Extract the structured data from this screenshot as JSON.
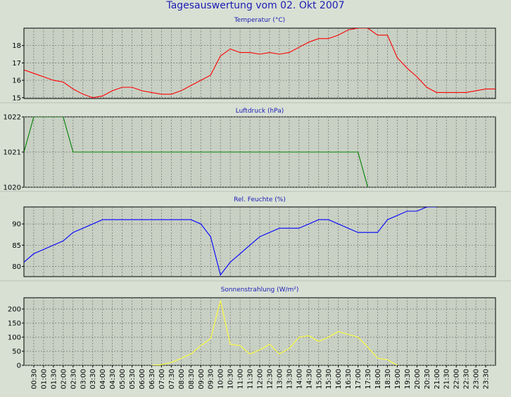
{
  "title": "Tagesauswertung vom 02. Okt 2007",
  "time_labels": [
    "00:30",
    "01:00",
    "01:30",
    "02:00",
    "02:30",
    "03:00",
    "03:30",
    "04:00",
    "04:30",
    "05:00",
    "05:30",
    "06:00",
    "06:30",
    "07:00",
    "07:30",
    "08:00",
    "08:30",
    "09:00",
    "09:30",
    "10:00",
    "10:30",
    "11:00",
    "11:30",
    "12:00",
    "12:30",
    "13:00",
    "13:30",
    "14:00",
    "14:30",
    "15:00",
    "15:30",
    "16:00",
    "16:30",
    "17:00",
    "17:30",
    "18:00",
    "18:30",
    "19:00",
    "19:30",
    "20:00",
    "20:30",
    "21:00",
    "21:30",
    "22:00",
    "22:30",
    "23:00",
    "23:30"
  ],
  "chart_data": [
    {
      "type": "line",
      "title": "Temperatur (°C)",
      "color": "#ff0000",
      "ylim": [
        14.95,
        19.0
      ],
      "yticks": [
        15,
        16,
        17,
        18
      ],
      "x": [
        "00:00",
        "00:30",
        "01:00",
        "01:30",
        "02:00",
        "02:30",
        "03:00",
        "03:30",
        "04:00",
        "04:30",
        "05:00",
        "05:30",
        "06:00",
        "06:30",
        "07:00",
        "07:30",
        "08:00",
        "08:30",
        "09:00",
        "09:30",
        "10:00",
        "10:30",
        "11:00",
        "11:30",
        "12:00",
        "12:30",
        "13:00",
        "13:30",
        "14:00",
        "14:30",
        "15:00",
        "15:30",
        "16:00",
        "16:30",
        "17:00",
        "17:30",
        "18:00",
        "18:30",
        "19:00",
        "19:30",
        "20:00",
        "20:30",
        "21:00",
        "21:30",
        "22:00",
        "22:30",
        "23:00",
        "23:30",
        "24:00"
      ],
      "values": [
        16.6,
        16.4,
        16.2,
        16.0,
        15.9,
        15.5,
        15.2,
        15.0,
        15.1,
        15.4,
        15.6,
        15.6,
        15.4,
        15.3,
        15.2,
        15.2,
        15.4,
        15.7,
        16.0,
        16.3,
        17.4,
        17.8,
        17.6,
        17.6,
        17.5,
        17.6,
        17.5,
        17.6,
        17.9,
        18.2,
        18.4,
        18.4,
        18.6,
        18.9,
        19.0,
        19.0,
        18.6,
        18.6,
        17.3,
        16.7,
        16.2,
        15.6,
        15.3,
        15.3,
        15.3,
        15.3,
        15.4,
        15.5,
        15.5
      ]
    },
    {
      "type": "line",
      "title": "Luftdruck (hPa)",
      "color": "#008000",
      "ylim": [
        1020,
        1022
      ],
      "yticks": [
        1020,
        1021,
        1022
      ],
      "x": [
        "00:00",
        "00:30",
        "02:00",
        "02:30",
        "17:00",
        "17:30"
      ],
      "values": [
        1021,
        1022,
        1022,
        1021,
        1021,
        1020
      ]
    },
    {
      "type": "line",
      "title": "Rel. Feuchte (%)",
      "color": "#0000ff",
      "ylim": [
        77.6,
        94.0
      ],
      "yticks": [
        80,
        85,
        90
      ],
      "x": [
        "00:00",
        "00:30",
        "01:00",
        "01:30",
        "02:00",
        "02:30",
        "03:00",
        "03:30",
        "04:00",
        "04:30",
        "05:00",
        "05:30",
        "06:00",
        "06:30",
        "07:00",
        "07:30",
        "08:00",
        "08:30",
        "09:00",
        "09:30",
        "10:00",
        "10:30",
        "11:00",
        "11:30",
        "12:00",
        "12:30",
        "13:00",
        "13:30",
        "14:00",
        "14:30",
        "15:00",
        "15:30",
        "16:00",
        "16:30",
        "17:00",
        "17:30",
        "18:00",
        "18:30",
        "19:00",
        "19:30",
        "20:00",
        "20:30",
        "21:00"
      ],
      "values": [
        81,
        83,
        84,
        85,
        86,
        88,
        89,
        90,
        91,
        91,
        91,
        91,
        91,
        91,
        91,
        91,
        91,
        91,
        90,
        87,
        78,
        81,
        83,
        85,
        87,
        88,
        89,
        89,
        89,
        90,
        91,
        91,
        90,
        89,
        88,
        88,
        88,
        91,
        92,
        93,
        93,
        94,
        94
      ]
    },
    {
      "type": "line",
      "title": "Sonnenstrahlung (W/m²)",
      "color": "#ffff33",
      "ylim": [
        0,
        240
      ],
      "yticks": [
        0,
        50,
        100,
        150,
        200
      ],
      "x": [
        "06:30",
        "07:00",
        "07:30",
        "08:00",
        "08:30",
        "09:00",
        "09:30",
        "10:00",
        "10:30",
        "11:00",
        "11:30",
        "12:00",
        "12:30",
        "13:00",
        "13:30",
        "14:00",
        "14:30",
        "15:00",
        "15:30",
        "16:00",
        "16:30",
        "17:00",
        "17:30",
        "18:00",
        "18:30",
        "19:00"
      ],
      "values": [
        0,
        2,
        10,
        25,
        40,
        70,
        95,
        230,
        75,
        70,
        40,
        55,
        75,
        40,
        60,
        100,
        105,
        85,
        100,
        120,
        110,
        100,
        65,
        25,
        20,
        0
      ]
    }
  ]
}
